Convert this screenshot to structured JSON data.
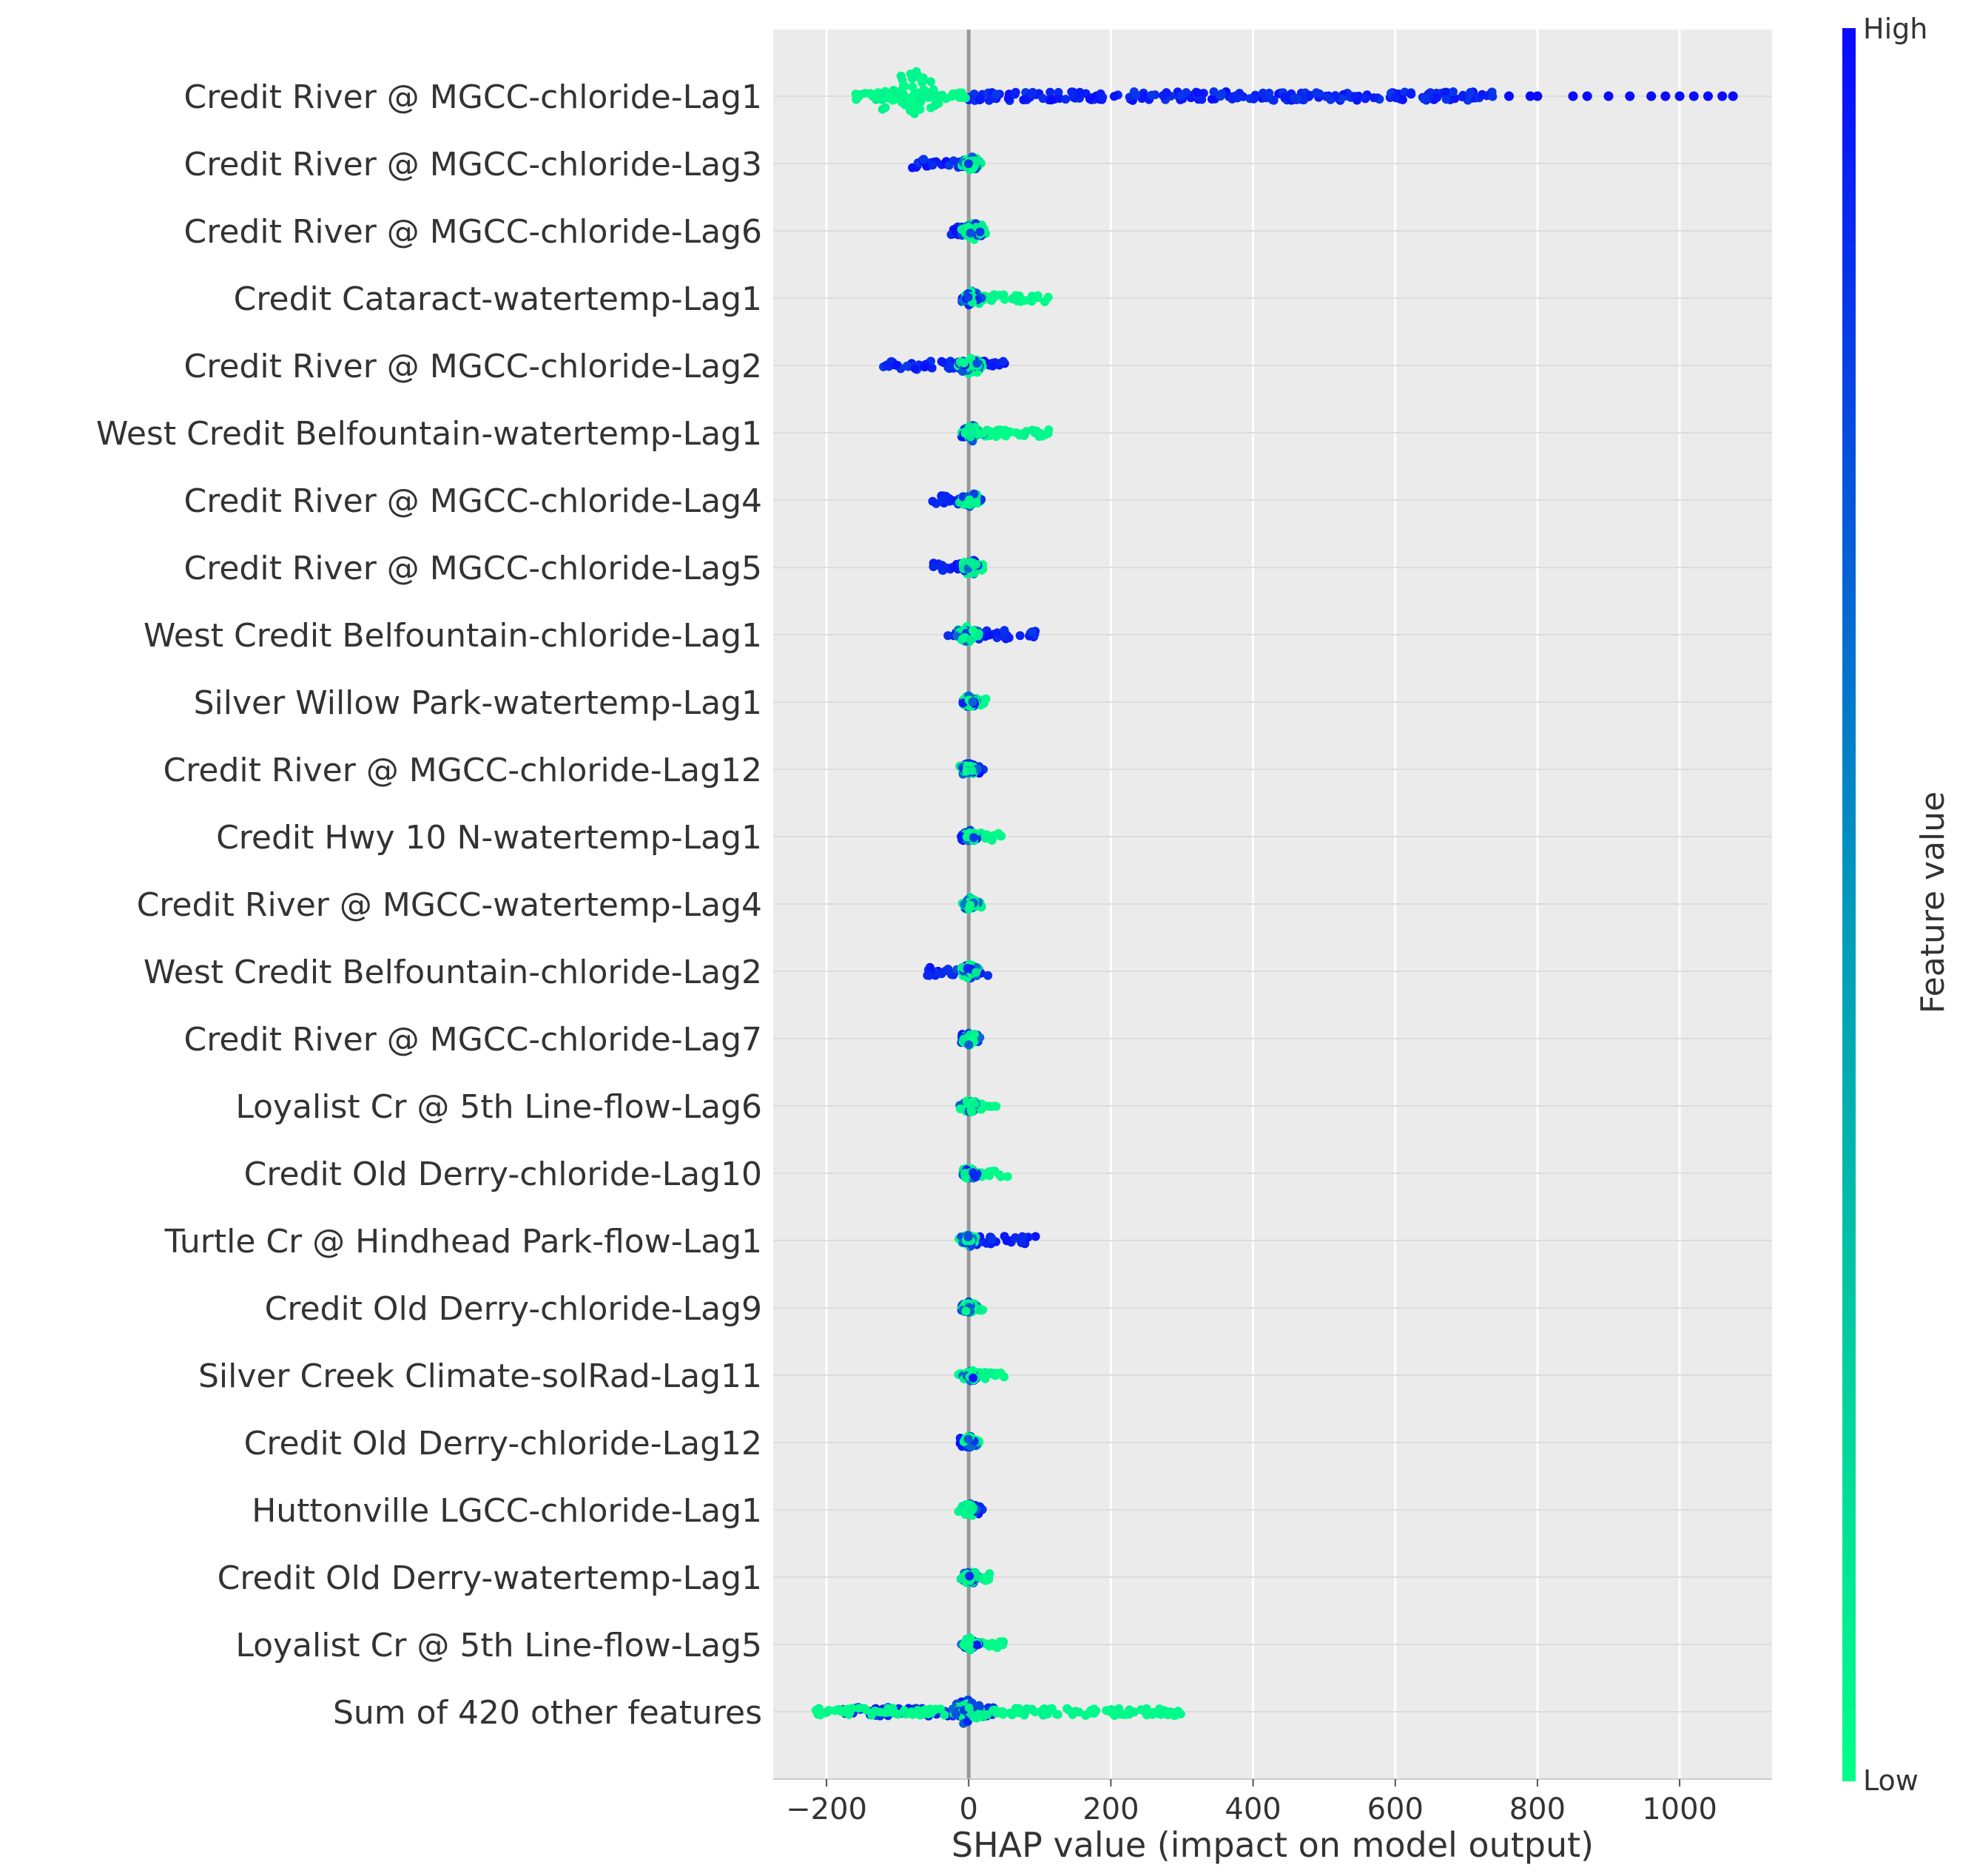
{
  "chart_data": {
    "type": "scatter",
    "subtype": "shap-beeswarm-summary",
    "title": "",
    "xlabel": "SHAP value (impact on model output)",
    "ylabel": "",
    "xlim": [
      -275,
      1130
    ],
    "x_ticks": [
      -200,
      0,
      200,
      400,
      600,
      800,
      1000
    ],
    "x_tick_labels": [
      "−200",
      "0",
      "200",
      "400",
      "600",
      "800",
      "1000"
    ],
    "grid": true,
    "zero_line": true,
    "colorbar": {
      "label": "Feature value",
      "high_label": "High",
      "low_label": "Low",
      "high_color": "#0a0aff",
      "low_color": "#00ff88"
    },
    "colors": {
      "plot_background": "#ebebeb",
      "grid": "#ffffff",
      "zero_line": "#999999",
      "text": "#333333"
    },
    "features": [
      {
        "name": "Credit River @ MGCC-chloride-Lag1",
        "low_min": -160,
        "low_max": 0,
        "low_center": -80,
        "bulge": 1.0,
        "high_min": 0,
        "high_max": 740,
        "high_outliers": [
          760,
          790,
          800,
          850,
          870,
          900,
          930,
          960,
          980,
          1000,
          1020,
          1040,
          1060,
          1075
        ]
      },
      {
        "name": "Credit River @ MGCC-chloride-Lag3",
        "low_min": -5,
        "low_max": 15,
        "low_center": 2,
        "bulge": 0.3,
        "high_min": -80,
        "high_max": -5,
        "high_outliers": []
      },
      {
        "name": "Credit River @ MGCC-chloride-Lag6",
        "low_min": -5,
        "low_max": 25,
        "low_center": 5,
        "bulge": 0.35,
        "high_min": -25,
        "high_max": -5,
        "high_outliers": []
      },
      {
        "name": "Credit Cataract-watertemp-Lag1",
        "low_min": 0,
        "low_max": 115,
        "low_center": 5,
        "bulge": 0.3,
        "high_min": -10,
        "high_max": 5,
        "high_outliers": []
      },
      {
        "name": "Credit River @ MGCC-chloride-Lag2",
        "low_min": -10,
        "low_max": 20,
        "low_center": 2,
        "bulge": 0.35,
        "high_min": -120,
        "high_max": 55,
        "high_outliers": []
      },
      {
        "name": "West Credit Belfountain-watertemp-Lag1",
        "low_min": 0,
        "low_max": 120,
        "low_center": 5,
        "bulge": 0.3,
        "high_min": -10,
        "high_max": 5,
        "high_outliers": []
      },
      {
        "name": "Credit River @ MGCC-chloride-Lag4",
        "low_min": -5,
        "low_max": 10,
        "low_center": 2,
        "bulge": 0.3,
        "high_min": -55,
        "high_max": -5,
        "high_outliers": []
      },
      {
        "name": "Credit River @ MGCC-chloride-Lag5",
        "low_min": -5,
        "low_max": 20,
        "low_center": 2,
        "bulge": 0.3,
        "high_min": -50,
        "high_max": -5,
        "high_outliers": []
      },
      {
        "name": "West Credit Belfountain-chloride-Lag1",
        "low_min": -5,
        "low_max": 5,
        "low_center": 0,
        "bulge": 0.35,
        "high_min": -35,
        "high_max": 95,
        "high_outliers": []
      },
      {
        "name": "Silver Willow Park-watertemp-Lag1",
        "low_min": 0,
        "low_max": 25,
        "low_center": 2,
        "bulge": 0.25,
        "high_min": -8,
        "high_max": 5,
        "high_outliers": []
      },
      {
        "name": "Credit River @ MGCC-chloride-Lag12",
        "low_min": -5,
        "low_max": 5,
        "low_center": 0,
        "bulge": 0.25,
        "high_min": -5,
        "high_max": 22,
        "high_outliers": []
      },
      {
        "name": "Credit Hwy 10 N-watertemp-Lag1",
        "low_min": 0,
        "low_max": 55,
        "low_center": 2,
        "bulge": 0.25,
        "high_min": -10,
        "high_max": 5,
        "high_outliers": []
      },
      {
        "name": "Credit River @ MGCC-watertemp-Lag4",
        "low_min": 0,
        "low_max": 20,
        "low_center": 2,
        "bulge": 0.25,
        "high_min": -5,
        "high_max": 5,
        "high_outliers": []
      },
      {
        "name": "West Credit Belfountain-chloride-Lag2",
        "low_min": -5,
        "low_max": 5,
        "low_center": 0,
        "bulge": 0.3,
        "high_min": -60,
        "high_max": 30,
        "high_outliers": []
      },
      {
        "name": "Credit River @ MGCC-chloride-Lag7",
        "low_min": -5,
        "low_max": 10,
        "low_center": 2,
        "bulge": 0.25,
        "high_min": -12,
        "high_max": 0,
        "high_outliers": []
      },
      {
        "name": "Loyalist Cr @ 5th Line-flow-Lag6",
        "low_min": -5,
        "low_max": 40,
        "low_center": 2,
        "bulge": 0.25,
        "high_min": -5,
        "high_max": 5,
        "high_outliers": []
      },
      {
        "name": "Credit Old Derry-chloride-Lag10",
        "low_min": -5,
        "low_max": 55,
        "low_center": 2,
        "bulge": 0.25,
        "high_min": -5,
        "high_max": 5,
        "high_outliers": []
      },
      {
        "name": "Turtle Cr @ Hindhead Park-flow-Lag1",
        "low_min": -10,
        "low_max": 5,
        "low_center": 0,
        "bulge": 0.25,
        "high_min": 0,
        "high_max": 95,
        "high_outliers": []
      },
      {
        "name": "Credit Old Derry-chloride-Lag9",
        "low_min": -5,
        "low_max": 20,
        "low_center": 2,
        "bulge": 0.25,
        "high_min": -10,
        "high_max": 5,
        "high_outliers": []
      },
      {
        "name": "Silver Creek Climate-solRad-Lag11",
        "low_min": -15,
        "low_max": 50,
        "low_center": 2,
        "bulge": 0.25,
        "high_min": -5,
        "high_max": 5,
        "high_outliers": []
      },
      {
        "name": "Credit Old Derry-chloride-Lag12",
        "low_min": -5,
        "low_max": 15,
        "low_center": 2,
        "bulge": 0.25,
        "high_min": -12,
        "high_max": 5,
        "high_outliers": []
      },
      {
        "name": "Huttonville LGCC-chloride-Lag1",
        "low_min": -5,
        "low_max": 10,
        "low_center": 0,
        "bulge": 0.25,
        "high_min": -5,
        "high_max": 20,
        "high_outliers": []
      },
      {
        "name": "Credit Old Derry-watertemp-Lag1",
        "low_min": -5,
        "low_max": 30,
        "low_center": 2,
        "bulge": 0.25,
        "high_min": -8,
        "high_max": 5,
        "high_outliers": []
      },
      {
        "name": "Loyalist Cr @ 5th Line-flow-Lag5",
        "low_min": -5,
        "low_max": 50,
        "low_center": 2,
        "bulge": 0.25,
        "high_min": -5,
        "high_max": 5,
        "high_outliers": []
      },
      {
        "name": "Sum of 420 other features",
        "low_min": -215,
        "low_max": 300,
        "low_center": 0,
        "bulge": 0.5,
        "high_min": -180,
        "high_max": 40,
        "high_outliers": []
      }
    ]
  }
}
